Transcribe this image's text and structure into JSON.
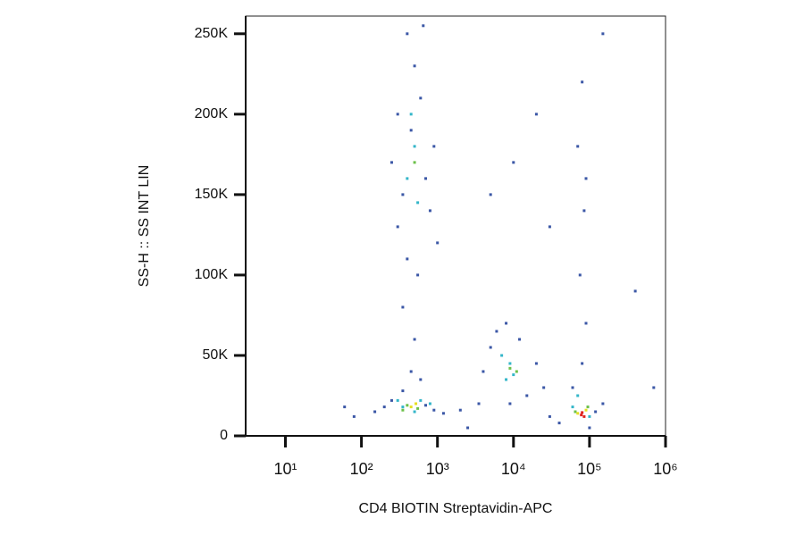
{
  "chart_data": {
    "type": "scatter",
    "x_label": "CD4 BIOTIN Streptavidin-APC",
    "y_label": "SS-H :: SS INT LIN",
    "x_log": true,
    "xlim": [
      3,
      1000000
    ],
    "xticks": [
      {
        "value": 10,
        "label": "10¹"
      },
      {
        "value": 100,
        "label": "10²"
      },
      {
        "value": 1000,
        "label": "10³"
      },
      {
        "value": 10000,
        "label": "10⁴"
      },
      {
        "value": 100000,
        "label": "10⁵"
      },
      {
        "value": 1000000,
        "label": "10⁶"
      }
    ],
    "ylim": [
      0,
      261000
    ],
    "yticks": [
      0,
      {
        "value": 50000,
        "label": "50K"
      },
      {
        "value": 100000,
        "label": "100K"
      },
      {
        "value": 150000,
        "label": "150K"
      },
      {
        "value": 200000,
        "label": "200K"
      },
      {
        "value": 250000,
        "label": "250K"
      }
    ],
    "series": [
      {
        "color": "#3b57a6",
        "x": [
          200,
          250,
          150,
          700,
          900,
          1200,
          350,
          450,
          600,
          500,
          400,
          550,
          300,
          350,
          700,
          800,
          250,
          450,
          600,
          500,
          400,
          650,
          300,
          900,
          1000,
          350,
          4000,
          5000,
          6000,
          20000,
          25000,
          15000,
          3500,
          8000,
          12000,
          9000,
          30000,
          40000,
          120000,
          150000,
          60000,
          80000,
          90000,
          75000,
          85000,
          70000,
          80000,
          90000,
          20000,
          10000,
          5000,
          30000,
          150000,
          400000,
          60,
          80,
          2000,
          2500,
          100000,
          700000
        ],
        "values": [
          18000,
          22000,
          15000,
          19000,
          16000,
          14000,
          28000,
          40000,
          35000,
          60000,
          110000,
          100000,
          130000,
          150000,
          160000,
          140000,
          170000,
          190000,
          210000,
          230000,
          250000,
          255000,
          200000,
          180000,
          120000,
          80000,
          40000,
          55000,
          65000,
          45000,
          30000,
          25000,
          20000,
          70000,
          60000,
          20000,
          12000,
          8000,
          15000,
          20000,
          30000,
          45000,
          70000,
          100000,
          140000,
          180000,
          220000,
          160000,
          200000,
          170000,
          150000,
          130000,
          250000,
          90000,
          18000,
          12000,
          16000,
          5000,
          5000,
          30000
        ]
      },
      {
        "color": "#34b6c9",
        "x": [
          350,
          500,
          600,
          400,
          500,
          550,
          450,
          8000,
          9000,
          7000,
          10000,
          60000,
          100000,
          70000,
          300,
          800
        ],
        "values": [
          18000,
          15000,
          22000,
          160000,
          180000,
          145000,
          200000,
          35000,
          45000,
          50000,
          38000,
          18000,
          12000,
          25000,
          22000,
          20000
        ]
      },
      {
        "color": "#6cc04a",
        "x": [
          400,
          550,
          350,
          9000,
          11000,
          500,
          65000,
          95000
        ],
        "values": [
          19000,
          17000,
          16000,
          42000,
          40000,
          170000,
          15000,
          18000
        ]
      },
      {
        "color": "#e6df22",
        "x": [
          450,
          520,
          70000,
          90000
        ],
        "values": [
          18000,
          20000,
          14000,
          16000
        ]
      },
      {
        "color": "#e0241e",
        "x": [
          78000,
          85000,
          80000
        ],
        "values": [
          13000,
          12000,
          14500
        ]
      }
    ]
  }
}
